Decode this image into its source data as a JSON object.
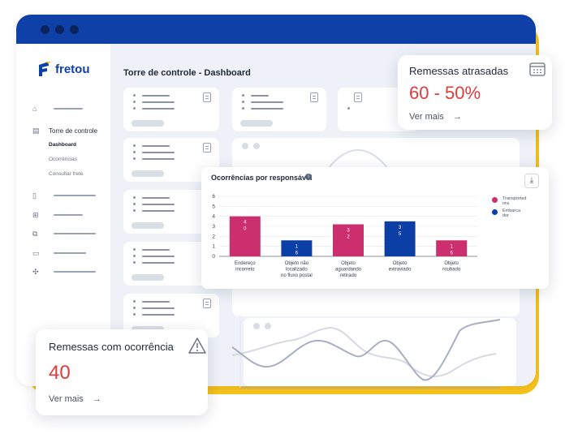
{
  "app": {
    "name": "fretou",
    "page_title": "Torre de controle - Dashboard"
  },
  "colors": {
    "brand": "#0e40a8",
    "accent_yellow": "#f6c21c",
    "alert_red": "#e03a3a",
    "series_pink": "#cc2f6e",
    "series_blue": "#0b3fa6"
  },
  "sidebar": {
    "section_title": "Torre de controle",
    "sub_items": [
      {
        "label": "Dashboard",
        "active": true
      },
      {
        "label": "Ocorrências",
        "active": false
      },
      {
        "label": "Consultar frete",
        "active": false
      }
    ],
    "icons": [
      "home-icon",
      "dashboard-icon",
      "document-icon",
      "cart-icon",
      "external-icon",
      "card-icon",
      "puzzle-icon"
    ]
  },
  "cards": {
    "delayed": {
      "title": "Remessas atrasadas",
      "value": "60 - 50%",
      "link": "Ver mais",
      "link_icon": "→"
    },
    "occurrences": {
      "title": "Remessas com ocorrência",
      "value": "40",
      "link": "Ver mais",
      "link_icon": "→"
    }
  },
  "chart_card": {
    "title": "Ocorrências por responsável",
    "info_icon": "i",
    "download_icon": "⤓"
  },
  "chart_data": {
    "type": "bar",
    "title": "Ocorrências por responsável",
    "categories": [
      "Endereço incorreto",
      "Objeto não localizado no fluxo postal",
      "Objeto aguardando retirado",
      "Objeto extraviado",
      "Objeto roubado"
    ],
    "categories_lines": [
      [
        "Endereço",
        "incorreto"
      ],
      [
        "Objeto não",
        "localizado",
        "no fluxo postal"
      ],
      [
        "Objeto",
        "aguardando",
        "retirado"
      ],
      [
        "Objeto",
        "extraviado"
      ],
      [
        "Objeto",
        "roubado"
      ]
    ],
    "series": [
      {
        "name": "Transportadora",
        "color": "#cc2f6e"
      },
      {
        "name": "Embarcador",
        "color": "#0b3fa6"
      }
    ],
    "values": [
      4.0,
      1.6,
      3.2,
      3.5,
      1.6
    ],
    "value_labels": [
      [
        "4",
        "0"
      ],
      [
        "1",
        "6"
      ],
      [
        "3",
        "2"
      ],
      [
        "3",
        "5"
      ],
      [
        "1",
        "6"
      ]
    ],
    "bar_colors": [
      "#cc2f6e",
      "#0b3fa6",
      "#cc2f6e",
      "#0b3fa6",
      "#cc2f6e"
    ],
    "ylim": [
      0,
      6
    ],
    "yticks": [
      "6",
      "5",
      "4",
      "3",
      "2",
      "1",
      "0"
    ],
    "legend_lines": [
      [
        "Transported",
        "ora"
      ],
      [
        "Embarca",
        "dor"
      ]
    ],
    "legend": "right",
    "grid": true
  }
}
